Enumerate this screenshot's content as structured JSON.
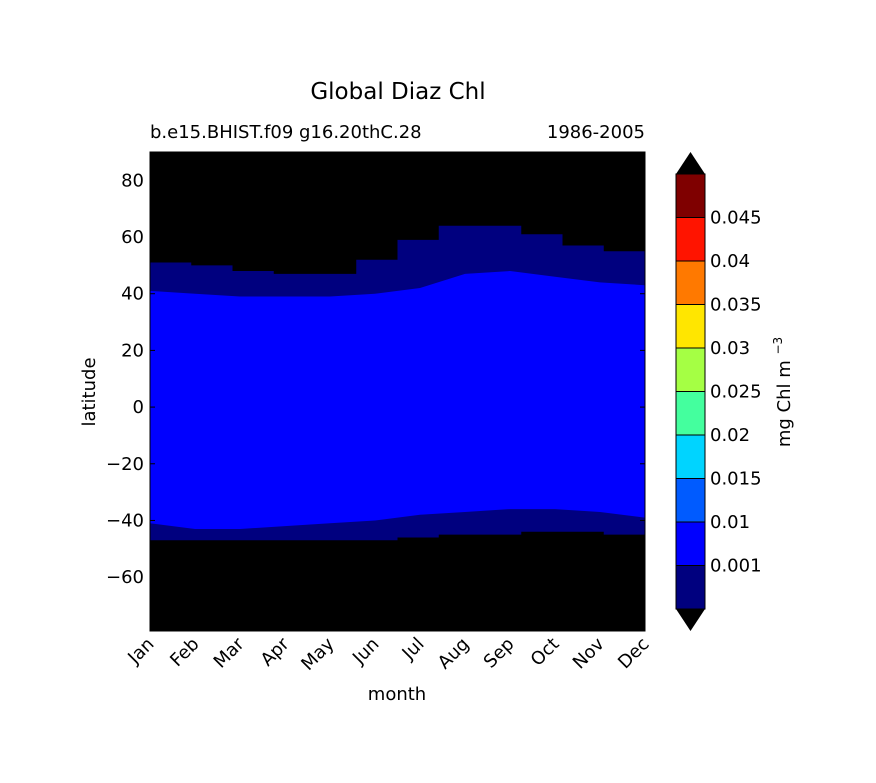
{
  "chart_data": {
    "type": "heatmap",
    "title": "Global Diaz Chl",
    "subtitle_left": "b.e15.BHIST.f09 g16.20thC.28",
    "subtitle_right": "1986-2005",
    "xlabel": "month",
    "ylabel": "latitude",
    "x_categories": [
      "Jan",
      "Feb",
      "Mar",
      "Apr",
      "May",
      "Jun",
      "Jul",
      "Aug",
      "Sep",
      "Oct",
      "Nov",
      "Dec"
    ],
    "ylim": [
      -79,
      90
    ],
    "y_ticks": [
      80,
      60,
      40,
      20,
      0,
      -20,
      -40,
      -60
    ],
    "y_tick_labels": [
      "80",
      "60",
      "40",
      "20",
      "0",
      "−20",
      "−40",
      "−60"
    ],
    "bands": {
      "low_edge": [
        51,
        50,
        48,
        47,
        47,
        52,
        59,
        64,
        64,
        61,
        57,
        55
      ],
      "mid_edge_north": [
        41,
        40,
        39,
        39,
        39,
        40,
        42,
        47,
        48,
        46,
        44,
        43
      ],
      "mid_edge_south": [
        -41,
        -43,
        -43,
        -42,
        -41,
        -40,
        -38,
        -37,
        -36,
        -36,
        -37,
        -39
      ],
      "low_edge_south": [
        -47,
        -47,
        -47,
        -47,
        -47,
        -47,
        -46,
        -45,
        -45,
        -44,
        -44,
        -45
      ]
    },
    "colorbar": {
      "label": "mg Chl m",
      "label_sup": "−3",
      "levels": [
        "0.001",
        "0.01",
        "0.015",
        "0.02",
        "0.025",
        "0.03",
        "0.035",
        "0.04",
        "0.045"
      ],
      "colors": [
        "#00007f",
        "#0000ff",
        "#005bff",
        "#00d4ff",
        "#44ff9e",
        "#a5ff44",
        "#ffe600",
        "#ff7900",
        "#ff1400",
        "#7f0000"
      ],
      "under_color": "#000000",
      "over_color": "#000000"
    },
    "background_color": "#000000",
    "band_colors": {
      "low": "#00007f",
      "mid": "#0000ff"
    }
  }
}
